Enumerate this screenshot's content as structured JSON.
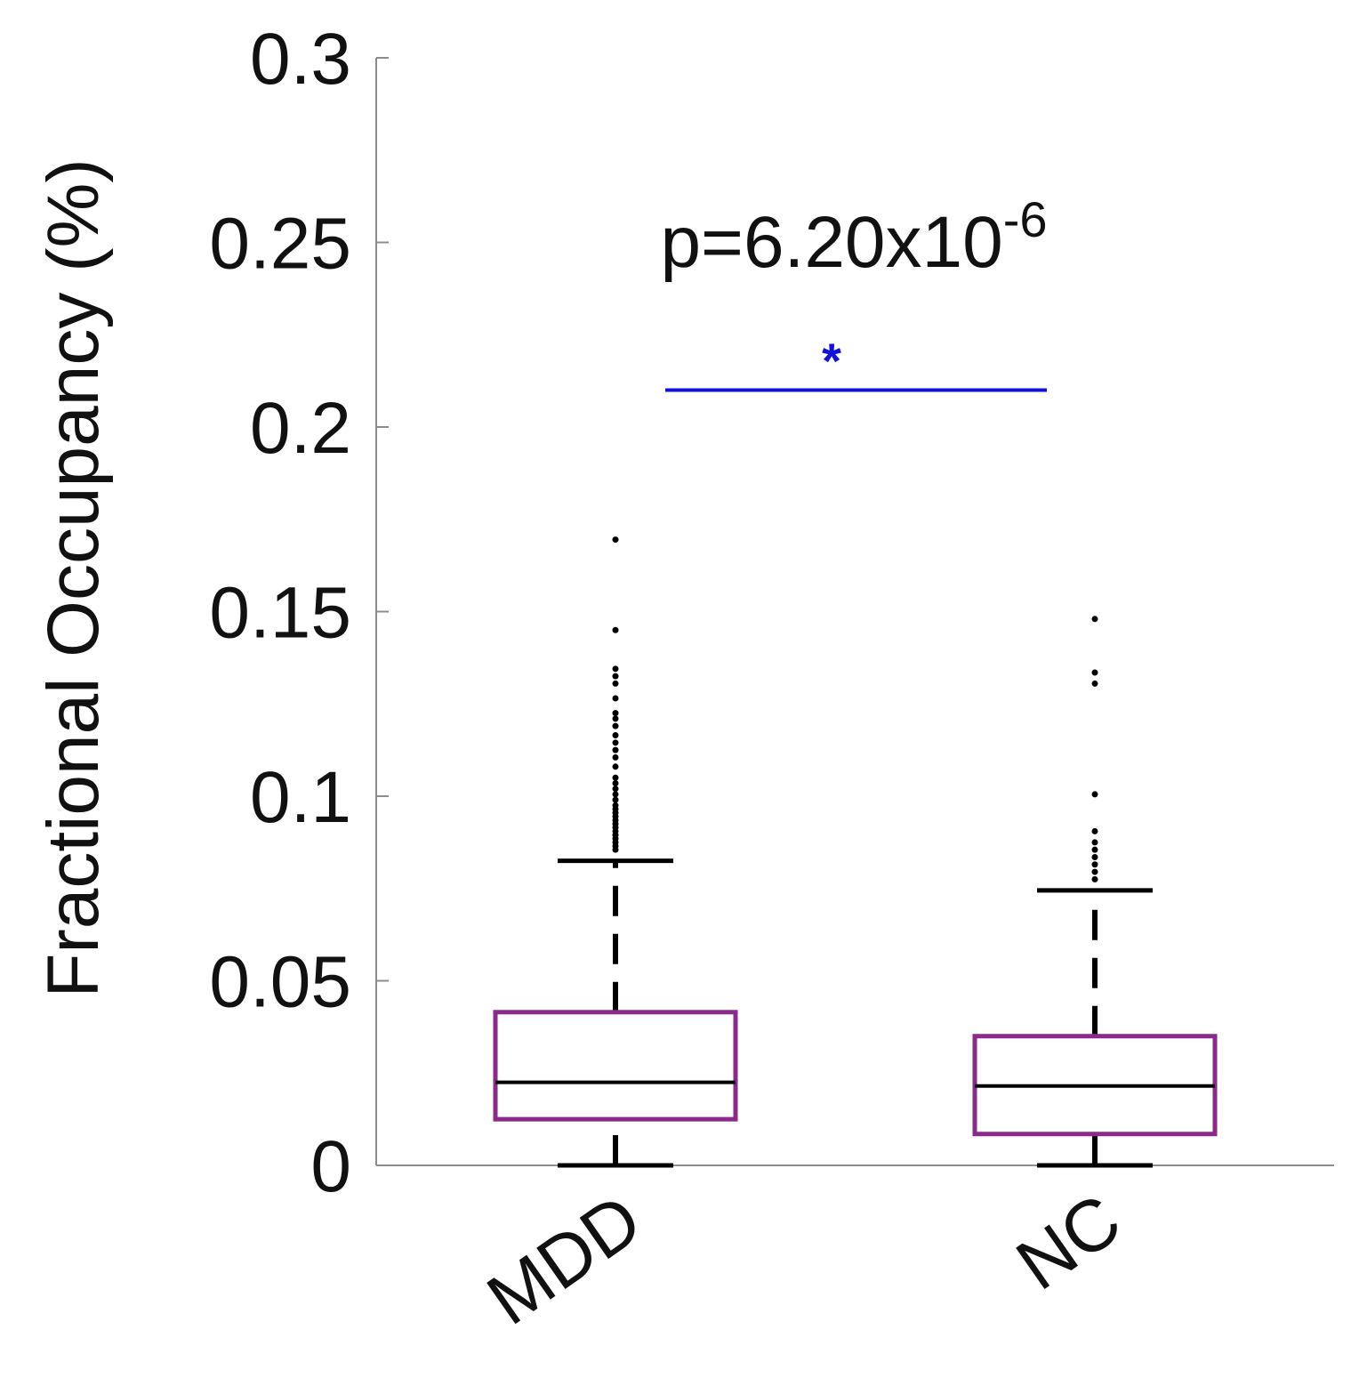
{
  "chart_data": {
    "type": "box",
    "ylabel": "Fractional Occupancy (%)",
    "ylim": [
      0,
      0.3
    ],
    "yticks": [
      0,
      0.05,
      0.1,
      0.15,
      0.2,
      0.25,
      0.3
    ],
    "ytick_labels": [
      "0",
      "0.05",
      "0.1",
      "0.15",
      "0.2",
      "0.25",
      "0.3"
    ],
    "categories": [
      "MDD",
      "NC"
    ],
    "box_color": "#8a2a8a",
    "median_color": "#000000",
    "boxes": [
      {
        "name": "MDD",
        "whisker_low": 0.0,
        "q1": 0.0125,
        "median": 0.0225,
        "q3": 0.0415,
        "whisker_high": 0.0825,
        "outliers": [
          0.0855,
          0.0865,
          0.0875,
          0.0885,
          0.0895,
          0.0905,
          0.0915,
          0.0925,
          0.0935,
          0.0945,
          0.0955,
          0.0965,
          0.0975,
          0.099,
          0.1005,
          0.102,
          0.1035,
          0.105,
          0.108,
          0.1105,
          0.1125,
          0.1145,
          0.1165,
          0.119,
          0.121,
          0.1225,
          0.1265,
          0.1305,
          0.1325,
          0.1345,
          0.145,
          0.1695
        ]
      },
      {
        "name": "NC",
        "whisker_low": 0.0,
        "q1": 0.0085,
        "median": 0.0215,
        "q3": 0.035,
        "whisker_high": 0.0745,
        "outliers": [
          0.0775,
          0.0795,
          0.0815,
          0.0835,
          0.0855,
          0.0875,
          0.0905,
          0.1005,
          0.1305,
          0.1335,
          0.148
        ]
      }
    ],
    "significance": {
      "from": "MDD",
      "to": "NC",
      "y": 0.21,
      "marker": "*",
      "color": "#1010e0",
      "label_prefix": "p=6.20x10",
      "label_exponent": "-6"
    }
  }
}
